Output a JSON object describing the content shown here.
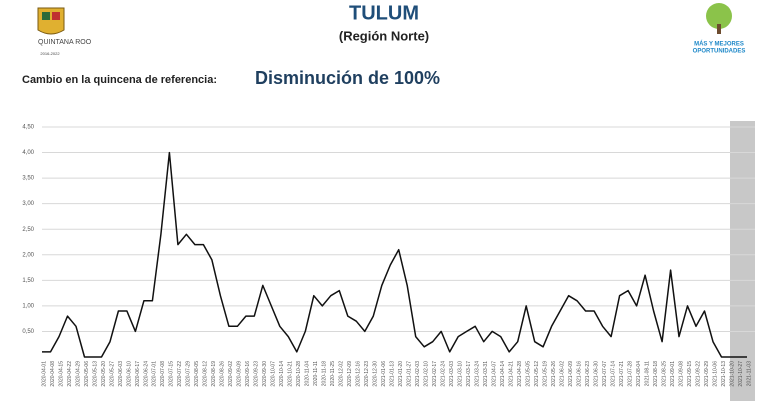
{
  "header": {
    "title": "TULUM",
    "subtitle": "(Región Norte)",
    "left_logo": {
      "name": "QUINTANA ROO",
      "years": "2016-2022"
    },
    "right_logo": {
      "line1": "MÁS Y MEJORES",
      "line2": "OPORTUNIDADES"
    },
    "change_label": "Cambio en la quincena de referencia:",
    "change_value": "Disminución de 100%"
  },
  "chart_data": {
    "type": "line",
    "x": [
      "2020-04-01",
      "2020-04-08",
      "2020-04-15",
      "2020-04-22",
      "2020-04-29",
      "2020-05-06",
      "2020-05-13",
      "2020-05-20",
      "2020-05-27",
      "2020-06-03",
      "2020-06-10",
      "2020-06-17",
      "2020-06-24",
      "2020-07-01",
      "2020-07-08",
      "2020-07-15",
      "2020-07-22",
      "2020-07-29",
      "2020-08-05",
      "2020-08-12",
      "2020-08-19",
      "2020-08-26",
      "2020-09-02",
      "2020-09-09",
      "2020-09-16",
      "2020-09-23",
      "2020-09-30",
      "2020-10-07",
      "2020-10-14",
      "2020-10-21",
      "2020-10-28",
      "2020-11-04",
      "2020-11-11",
      "2020-11-18",
      "2020-11-25",
      "2020-12-02",
      "2020-12-09",
      "2020-12-16",
      "2020-12-23",
      "2020-12-30",
      "2021-01-06",
      "2021-01-13",
      "2021-01-20",
      "2021-01-27",
      "2021-02-03",
      "2021-02-10",
      "2021-02-17",
      "2021-02-24",
      "2021-03-03",
      "2021-03-10",
      "2021-03-17",
      "2021-03-24",
      "2021-03-31",
      "2021-04-07",
      "2021-04-14",
      "2021-04-21",
      "2021-04-28",
      "2021-05-05",
      "2021-05-12",
      "2021-05-19",
      "2021-05-26",
      "2021-06-02",
      "2021-06-09",
      "2021-06-16",
      "2021-06-23",
      "2021-06-30",
      "2021-07-07",
      "2021-07-14",
      "2021-07-21",
      "2021-07-28",
      "2021-08-04",
      "2021-08-11",
      "2021-08-18",
      "2021-08-25",
      "2021-09-01",
      "2021-09-08",
      "2021-09-15",
      "2021-09-22",
      "2021-09-29",
      "2021-10-06",
      "2021-10-13",
      "2021-10-20",
      "2021-10-27",
      "2021-11-03"
    ],
    "series": [
      {
        "color": "#111111",
        "values": [
          0.1,
          0.1,
          0.4,
          0.8,
          0.6,
          0.0,
          0.0,
          0.0,
          0.3,
          0.9,
          0.9,
          0.5,
          1.1,
          1.1,
          2.4,
          4.0,
          2.2,
          2.4,
          2.2,
          2.2,
          1.9,
          1.2,
          0.6,
          0.6,
          0.8,
          0.8,
          1.4,
          1.0,
          0.6,
          0.4,
          0.1,
          0.5,
          1.2,
          1.0,
          1.2,
          1.3,
          0.8,
          0.7,
          0.5,
          0.8,
          1.4,
          1.8,
          2.1,
          1.4,
          0.4,
          0.2,
          0.3,
          0.5,
          0.1,
          0.4,
          0.5,
          0.6,
          0.3,
          0.5,
          0.4,
          0.1,
          0.3,
          1.0,
          0.3,
          0.2,
          0.6,
          0.9,
          1.2,
          1.1,
          0.9,
          0.9,
          0.6,
          0.4,
          1.2,
          1.3,
          1.0,
          1.6,
          0.9,
          0.3,
          1.7,
          0.4,
          1.0,
          0.6,
          0.9,
          0.3,
          0.0,
          0.0,
          0.0,
          0.0
        ]
      }
    ],
    "ylim": [
      0,
      4.5
    ],
    "yticks": [
      {
        "value": 0.5,
        "label": "0,50"
      },
      {
        "value": 1,
        "label": "1,00"
      },
      {
        "value": 1.5,
        "label": "1,50"
      },
      {
        "value": 2,
        "label": "2,00"
      },
      {
        "value": 2.5,
        "label": "2,50"
      },
      {
        "value": 3,
        "label": "3,00"
      },
      {
        "value": 3.5,
        "label": "3,50"
      },
      {
        "value": 4,
        "label": "4,00"
      },
      {
        "value": 4.5,
        "label": "4,50"
      }
    ],
    "grid": true,
    "shaded_from": "2021-10-20"
  }
}
